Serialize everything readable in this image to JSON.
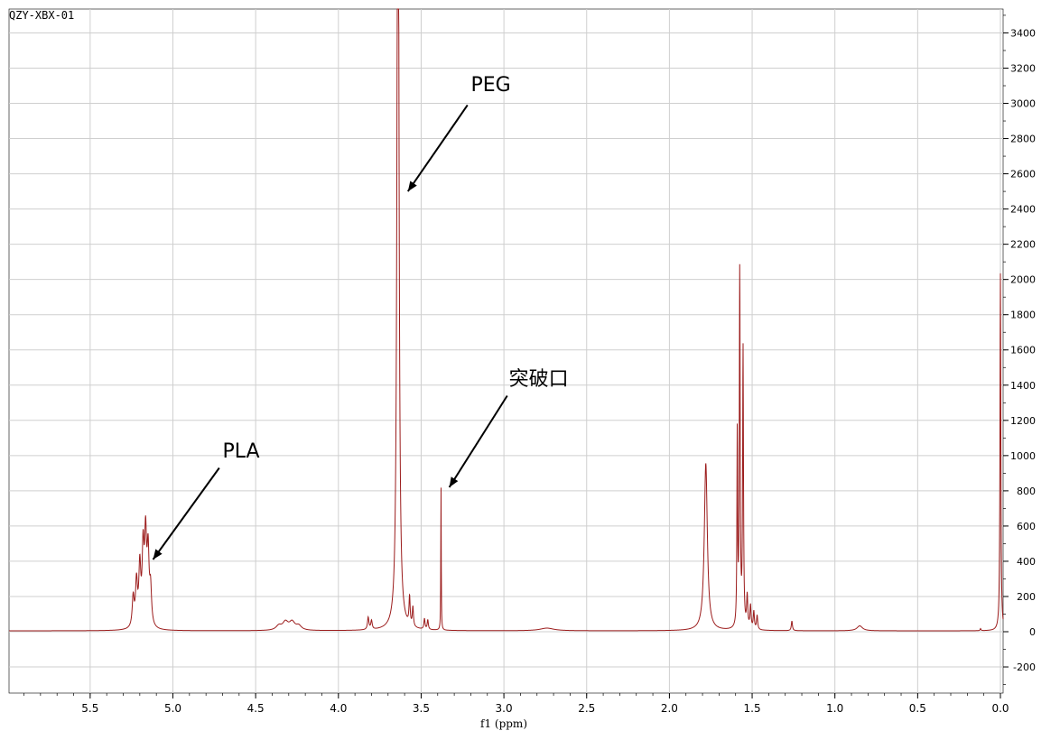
{
  "sample_id": "QZY-XBX-01",
  "chart_data": {
    "type": "line",
    "xlabel": "f1 (ppm)",
    "ylabel": "",
    "xlim": [
      6.0,
      0.0
    ],
    "ylim": [
      -300,
      3540
    ],
    "x_reversed": true,
    "y_axis_side": "right",
    "grid": true,
    "x_ticks": [
      5.5,
      5.0,
      4.5,
      4.0,
      3.5,
      3.0,
      2.5,
      2.0,
      1.5,
      1.0,
      0.5,
      0.0
    ],
    "x_tick_labels": [
      "5.5",
      "5.0",
      "4.5",
      "4.0",
      "3.5",
      "3.0",
      "2.5",
      "2.0",
      "1.5",
      "1.0",
      "0.5",
      "0.0"
    ],
    "y_ticks": [
      -200,
      0,
      200,
      400,
      600,
      800,
      1000,
      1200,
      1400,
      1600,
      1800,
      2000,
      2200,
      2400,
      2600,
      2800,
      3000,
      3200,
      3400
    ],
    "y_tick_labels": [
      "-200",
      "0",
      "200",
      "400",
      "600",
      "800",
      "1000",
      "1200",
      "1400",
      "1600",
      "1800",
      "2000",
      "2200",
      "2400",
      "2600",
      "2800",
      "3000",
      "3200",
      "3400"
    ],
    "line_color": "#9b1b1b",
    "grid_color": "#cfcfcf",
    "baseline": 5,
    "peaks": [
      {
        "x": 5.24,
        "h": 170,
        "w": 0.007
      },
      {
        "x": 5.22,
        "h": 250,
        "w": 0.007
      },
      {
        "x": 5.2,
        "h": 330,
        "w": 0.007
      },
      {
        "x": 5.18,
        "h": 420,
        "w": 0.007
      },
      {
        "x": 5.165,
        "h": 480,
        "w": 0.007
      },
      {
        "x": 5.15,
        "h": 400,
        "w": 0.007
      },
      {
        "x": 5.135,
        "h": 200,
        "w": 0.007
      },
      {
        "x": 4.36,
        "h": 25,
        "w": 0.02
      },
      {
        "x": 4.32,
        "h": 45,
        "w": 0.02
      },
      {
        "x": 4.28,
        "h": 45,
        "w": 0.02
      },
      {
        "x": 4.24,
        "h": 25,
        "w": 0.02
      },
      {
        "x": 3.82,
        "h": 70,
        "w": 0.005
      },
      {
        "x": 3.8,
        "h": 50,
        "w": 0.005
      },
      {
        "x": 3.64,
        "h": 6000,
        "w": 0.006
      },
      {
        "x": 3.57,
        "h": 160,
        "w": 0.004
      },
      {
        "x": 3.55,
        "h": 110,
        "w": 0.004
      },
      {
        "x": 3.48,
        "h": 60,
        "w": 0.004
      },
      {
        "x": 3.46,
        "h": 55,
        "w": 0.004
      },
      {
        "x": 3.38,
        "h": 840,
        "w": 0.0015
      },
      {
        "x": 2.74,
        "h": 15,
        "w": 0.05
      },
      {
        "x": 1.78,
        "h": 950,
        "w": 0.011
      },
      {
        "x": 1.59,
        "h": 1100,
        "w": 0.0025
      },
      {
        "x": 1.575,
        "h": 2030,
        "w": 0.003
      },
      {
        "x": 1.555,
        "h": 1580,
        "w": 0.003
      },
      {
        "x": 1.53,
        "h": 180,
        "w": 0.004
      },
      {
        "x": 1.51,
        "h": 130,
        "w": 0.004
      },
      {
        "x": 1.49,
        "h": 100,
        "w": 0.004
      },
      {
        "x": 1.47,
        "h": 80,
        "w": 0.004
      },
      {
        "x": 1.26,
        "h": 55,
        "w": 0.004
      },
      {
        "x": 0.85,
        "h": 28,
        "w": 0.02
      },
      {
        "x": 0.12,
        "h": 12,
        "w": 0.003
      },
      {
        "x": 0.0,
        "h": 2030,
        "w": 0.003
      }
    ],
    "annotations": [
      {
        "label": "PEG",
        "text_x": 3.2,
        "text_y": 3070,
        "arrow_from": [
          3.22,
          2990
        ],
        "arrow_to": [
          3.58,
          2500
        ]
      },
      {
        "label": "突破口",
        "text_x": 2.97,
        "text_y": 1400,
        "arrow_from": [
          2.98,
          1340
        ],
        "arrow_to": [
          3.33,
          820
        ]
      },
      {
        "label": "PLA",
        "text_x": 4.7,
        "text_y": 990,
        "arrow_from": [
          4.72,
          930
        ],
        "arrow_to": [
          5.12,
          410
        ]
      }
    ]
  }
}
